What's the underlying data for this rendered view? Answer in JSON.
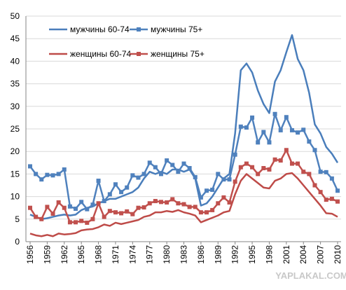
{
  "chart_data": {
    "type": "line",
    "x": [
      1956,
      1957,
      1958,
      1959,
      1960,
      1961,
      1962,
      1963,
      1964,
      1965,
      1966,
      1967,
      1968,
      1969,
      1970,
      1971,
      1972,
      1973,
      1974,
      1975,
      1976,
      1977,
      1978,
      1979,
      1980,
      1981,
      1982,
      1983,
      1984,
      1985,
      1986,
      1987,
      1988,
      1989,
      1990,
      1991,
      1992,
      1993,
      1994,
      1995,
      1996,
      1997,
      1998,
      1999,
      2000,
      2001,
      2002,
      2003,
      2004,
      2005,
      2006,
      2007,
      2008,
      2009,
      2010
    ],
    "xlim": [
      1956,
      2010
    ],
    "xticks": [
      1956,
      1959,
      1962,
      1965,
      1968,
      1971,
      1974,
      1977,
      1980,
      1983,
      1986,
      1989,
      1992,
      1995,
      1998,
      2001,
      2004,
      2007,
      2010
    ],
    "ylim": [
      0,
      50
    ],
    "yticks": [
      0,
      5,
      10,
      15,
      20,
      25,
      30,
      35,
      40,
      45,
      50
    ],
    "grid": true,
    "series": [
      {
        "name": "мужчины 60-74",
        "color": "#4a7ebb",
        "marker": false,
        "values": [
          6,
          5.5,
          5,
          5.2,
          5.5,
          5.8,
          6,
          5.8,
          6,
          7,
          7.5,
          7.8,
          8.5,
          9,
          9.5,
          9.5,
          10,
          10.5,
          11,
          12,
          14,
          15.5,
          15,
          15.5,
          15,
          16,
          16,
          15.5,
          16,
          14,
          8,
          8.5,
          10,
          12,
          14,
          15,
          24,
          38,
          39.5,
          37.5,
          33.5,
          30.5,
          28.5,
          35.5,
          38,
          42,
          45.8,
          40.5,
          38,
          33,
          26,
          24,
          21,
          19.5,
          17.5
        ]
      },
      {
        "name": "мужчины 75+",
        "color": "#4f81bd",
        "marker": true,
        "values": [
          16.7,
          15,
          13.8,
          14.8,
          14.7,
          15,
          16,
          7.8,
          7.3,
          8.8,
          7.2,
          8.2,
          13.5,
          9,
          10.5,
          12.7,
          11,
          12,
          14.7,
          14.2,
          15,
          17.5,
          16.5,
          15,
          18,
          17,
          15.5,
          17.3,
          16.3,
          14.3,
          9.8,
          11.3,
          11.5,
          15,
          13.8,
          13.8,
          19.3,
          25.5,
          25.3,
          27.5,
          22,
          24.3,
          22,
          28.3,
          24.7,
          27.6,
          24.7,
          24.2,
          24.8,
          22.2,
          20.3,
          15.5,
          15.4,
          14,
          11.3
        ]
      },
      {
        "name": "женщины 60-74",
        "color": "#be4b48",
        "marker": false,
        "values": [
          1.8,
          1.4,
          1.2,
          1.5,
          1.2,
          1.8,
          1.6,
          1.7,
          1.9,
          2.5,
          2.7,
          2.8,
          3.2,
          3.8,
          3.5,
          4.2,
          3.9,
          4.2,
          4.5,
          4.8,
          5.5,
          5.8,
          6.5,
          6.5,
          6.8,
          6.6,
          7,
          6.5,
          6.2,
          5.8,
          4.3,
          4.8,
          5.3,
          5.8,
          6.5,
          6.8,
          10.5,
          13.5,
          15,
          14,
          13,
          12,
          11.8,
          13.5,
          14,
          15,
          15.2,
          14,
          12.5,
          11,
          9.5,
          8,
          6.3,
          6.2,
          5.5
        ]
      },
      {
        "name": "женщины 75+",
        "color": "#c0504d",
        "marker": true,
        "values": [
          7.5,
          5.5,
          5,
          7.7,
          6.2,
          8.7,
          7.5,
          4.3,
          4.3,
          4.6,
          4.2,
          5,
          8.5,
          5.5,
          6.8,
          6.5,
          6.3,
          6.7,
          6.1,
          7.5,
          7.6,
          8.5,
          9,
          8.8,
          8.7,
          9.4,
          8.5,
          8.3,
          7.7,
          7.7,
          6.5,
          6.5,
          7,
          8.5,
          9.8,
          8.7,
          13.3,
          16.5,
          17.3,
          16.5,
          15,
          16.3,
          16,
          18.2,
          18,
          20.3,
          17.3,
          17.3,
          15.5,
          15,
          12.5,
          11,
          9.3,
          9.5,
          8.9
        ]
      }
    ]
  },
  "watermark": "YAPLAKAL.COM"
}
